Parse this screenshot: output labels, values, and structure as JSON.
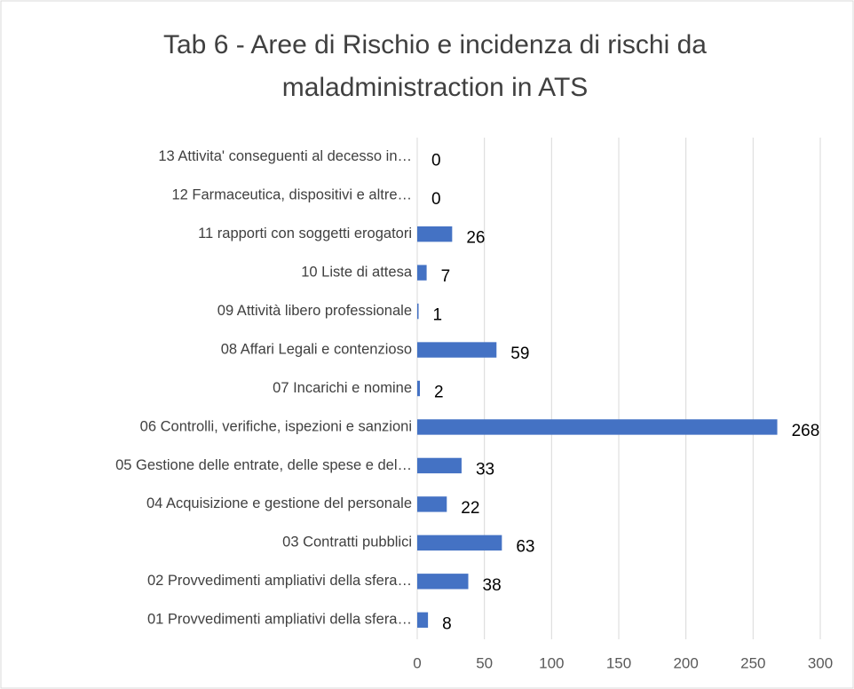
{
  "chart_data": {
    "type": "bar",
    "orientation": "horizontal",
    "title": [
      "Tab 6 - Aree di Rischio e incidenza di rischi da",
      "maladministraction in ATS"
    ],
    "categories": [
      "13 Attivita' conseguenti al decesso in…",
      "12 Farmaceutica, dispositivi e altre…",
      "11 rapporti con soggetti erogatori",
      "10 Liste di attesa",
      "09 Attività libero professionale",
      "08 Affari Legali e contenzioso",
      "07 Incarichi e nomine",
      "06 Controlli, verifiche, ispezioni e sanzioni",
      "05 Gestione delle entrate, delle spese e del…",
      "04 Acquisizione e gestione del personale",
      "03 Contratti pubblici",
      "02 Provvedimenti ampliativi della sfera…",
      "01 Provvedimenti ampliativi della sfera…"
    ],
    "values": [
      0,
      0,
      26,
      7,
      1,
      59,
      2,
      268,
      33,
      22,
      63,
      38,
      8
    ],
    "color": "#4472c4",
    "xlim": [
      0,
      300
    ],
    "xticks": [
      0,
      50,
      100,
      150,
      200,
      250,
      300
    ],
    "grid": true
  }
}
